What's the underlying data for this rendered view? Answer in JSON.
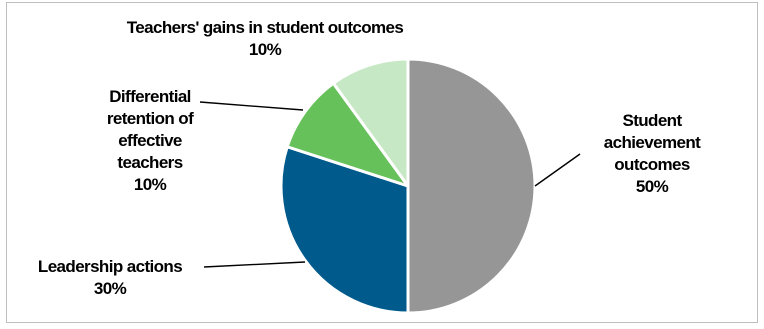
{
  "chart_data": {
    "type": "pie",
    "start": "top",
    "direction": "clockwise",
    "slices": [
      {
        "label_lines": [
          "Student",
          "achievement",
          "outcomes"
        ],
        "value_label": "50%",
        "value": 50,
        "color": "#969696"
      },
      {
        "label_lines": [
          "Leadership actions"
        ],
        "value_label": "30%",
        "value": 30,
        "color": "#005a8c"
      },
      {
        "label_lines": [
          "Differential",
          "retention of",
          "effective",
          "teachers"
        ],
        "value_label": "10%",
        "value": 10,
        "color": "#66c15a"
      },
      {
        "label_lines": [
          "Teachers' gains in student outcomes"
        ],
        "value_label": "10%",
        "value": 10,
        "color": "#c7e8c5"
      }
    ]
  }
}
